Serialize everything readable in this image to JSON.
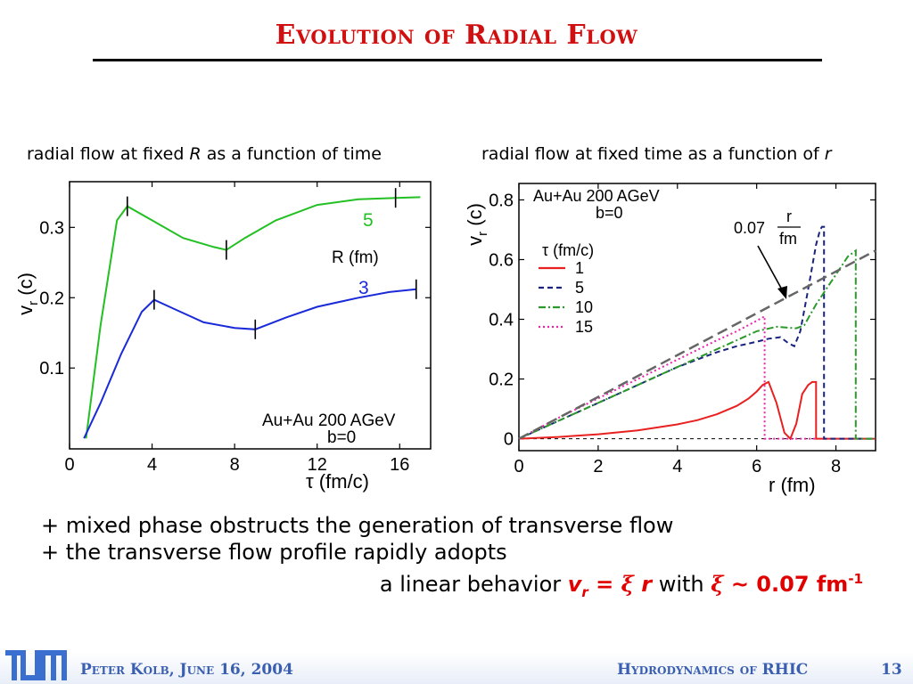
{
  "slide": {
    "title": "Evolution of Radial Flow",
    "subtitle_left": {
      "pre": "radial flow at fixed ",
      "var": "R",
      "post": " as a function of time"
    },
    "subtitle_right": {
      "pre": "radial flow at fixed time as a function of ",
      "var": "r"
    },
    "bullets": [
      "+ mixed phase obstructs the generation of transverse flow",
      "+ the transverse flow profile rapidly adopts"
    ],
    "last_line": {
      "pre": "a linear behavior ",
      "vr": "v",
      "vr_sub": "r",
      "eq": " = ",
      "xi": "ξ",
      "r": " r",
      "with": " with ",
      "xi2": "ξ",
      "tilde": " ~ ",
      "value": "0.07 fm",
      "exp": "-1"
    }
  },
  "footer": {
    "author": "Peter Kolb, June 16, 2004",
    "topic": "Hydrodynamics of RHIC",
    "page": "13",
    "logo": "TUM-logo"
  },
  "colors": {
    "title": "#d01010",
    "footer": "#3a5fb0",
    "green": "#22c022",
    "blue": "#1a2ad8",
    "red": "#e82020",
    "navy": "#1a237e",
    "dashgreen": "#2a9a2a",
    "magenta": "#ee22aa",
    "gray": "#666666"
  },
  "chart_data": [
    {
      "type": "line",
      "xlabel": "τ (fm/c)",
      "ylabel_main": "v",
      "ylabel_sub": "r",
      "ylabel_rest": " (c)",
      "xlim": [
        0,
        17.5
      ],
      "ylim": [
        -0.015,
        0.365
      ],
      "xticks": [
        0,
        4,
        8,
        12,
        16
      ],
      "yticks": [
        0.1,
        0.2,
        0.3
      ],
      "ytick_labels": [
        "0.1",
        "0.2",
        "0.3"
      ],
      "legend_title": "R (fm)",
      "annotation": [
        "Au+Au 200 AGeV",
        "b=0"
      ],
      "series": [
        {
          "name": "5",
          "color": "green",
          "x": [
            0.8,
            1.5,
            2.3,
            2.8,
            4.0,
            5.5,
            7.0,
            7.6,
            8.5,
            10,
            12,
            14,
            15.8,
            17
          ],
          "y": [
            0.0,
            0.16,
            0.31,
            0.33,
            0.31,
            0.285,
            0.272,
            0.268,
            0.285,
            0.31,
            0.332,
            0.34,
            0.342,
            0.343
          ],
          "ticks_at": [
            2.8,
            7.6,
            15.8
          ]
        },
        {
          "name": "3",
          "color": "blue",
          "x": [
            0.7,
            1.5,
            2.5,
            3.5,
            4.1,
            5.0,
            6.5,
            8.0,
            9.0,
            10.5,
            12,
            14,
            15.5,
            16.8
          ],
          "y": [
            0.0,
            0.05,
            0.12,
            0.18,
            0.197,
            0.185,
            0.165,
            0.157,
            0.155,
            0.172,
            0.187,
            0.2,
            0.208,
            0.212
          ],
          "ticks_at": [
            4.1,
            9.0,
            16.8
          ]
        }
      ]
    },
    {
      "type": "line",
      "xlabel": "r (fm)",
      "ylabel_main": "v",
      "ylabel_sub": "r",
      "ylabel_rest": " (c)",
      "xlim": [
        0,
        9.0
      ],
      "ylim": [
        -0.04,
        0.855
      ],
      "xticks": [
        0,
        2,
        4,
        6,
        8
      ],
      "yticks": [
        0,
        0.2,
        0.4,
        0.6,
        0.8
      ],
      "ytick_labels": [
        "0",
        "0.2",
        "0.4",
        "0.6",
        "0.8"
      ],
      "annotation": [
        "Au+Au 200 AGeV",
        "b=0"
      ],
      "fit_label": {
        "coef": "0.07",
        "num": "r",
        "den": "fm"
      },
      "legend_title": "τ (fm/c)",
      "series": [
        {
          "name": "1",
          "color": "red",
          "style": "solid",
          "x": [
            0,
            1,
            2,
            3,
            4,
            4.5,
            5,
            5.5,
            5.8,
            6.0,
            6.15,
            6.3,
            6.5,
            6.7,
            6.85,
            7.0,
            7.15,
            7.3,
            7.4,
            7.5,
            7.5,
            9.0
          ],
          "y": [
            0,
            0.006,
            0.015,
            0.028,
            0.048,
            0.062,
            0.082,
            0.11,
            0.135,
            0.158,
            0.18,
            0.19,
            0.12,
            0.02,
            0.0,
            0.05,
            0.15,
            0.18,
            0.19,
            0.19,
            0.0,
            0.0
          ]
        },
        {
          "name": "5",
          "color": "navy",
          "style": "dashed",
          "x": [
            0,
            1,
            2,
            3,
            4,
            5,
            5.5,
            6.0,
            6.3,
            6.6,
            6.8,
            6.95,
            7.1,
            7.3,
            7.5,
            7.6,
            7.65,
            7.7,
            7.7,
            9.0
          ],
          "y": [
            0,
            0.06,
            0.12,
            0.18,
            0.24,
            0.29,
            0.31,
            0.325,
            0.335,
            0.34,
            0.32,
            0.31,
            0.36,
            0.5,
            0.65,
            0.7,
            0.71,
            0.71,
            0.0,
            0.0
          ]
        },
        {
          "name": "10",
          "color": "dashgreen",
          "style": "dashdot",
          "x": [
            0,
            1,
            2,
            3,
            4,
            5,
            5.5,
            6.0,
            6.5,
            7.0,
            7.2,
            7.5,
            8.0,
            8.3,
            8.5,
            8.5,
            9.0
          ],
          "y": [
            0,
            0.06,
            0.12,
            0.18,
            0.24,
            0.3,
            0.33,
            0.36,
            0.375,
            0.37,
            0.38,
            0.45,
            0.55,
            0.61,
            0.63,
            0.0,
            0.0
          ]
        },
        {
          "name": "15",
          "color": "magenta",
          "style": "dotted",
          "x": [
            0,
            1,
            2,
            3,
            4,
            5,
            5.5,
            6.0,
            6.2,
            6.2,
            7.0,
            7.5
          ],
          "y": [
            0,
            0.07,
            0.135,
            0.2,
            0.265,
            0.33,
            0.36,
            0.395,
            0.41,
            0.0,
            0.0,
            0.0
          ]
        },
        {
          "name": "",
          "color": "gray",
          "style": "longdash",
          "fit": true,
          "x": [
            0,
            9.0
          ],
          "y": [
            0,
            0.63
          ]
        }
      ]
    }
  ]
}
